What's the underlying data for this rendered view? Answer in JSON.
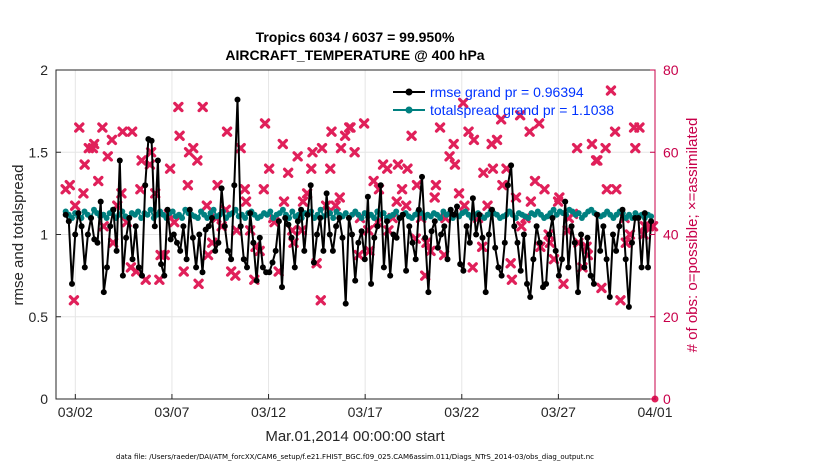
{
  "chart_data": {
    "type": "line",
    "title": "Tropics 6034 / 6037 = 99.950%",
    "subtitle": "AIRCRAFT_TEMPERATURE @ 400 hPa",
    "xlabel": "Mar.01,2014 00:00:00 start",
    "ylabel_left": "rmse and totalspread",
    "ylabel_right": "# of obs: o=possible; ×=assimilated",
    "ylim_left": [
      0,
      2
    ],
    "ylim_right": [
      0,
      80
    ],
    "xlim": [
      0,
      31
    ],
    "yticks_left": [
      0,
      0.5,
      1,
      1.5,
      2
    ],
    "yticks_left_labels": [
      "0",
      "0.5",
      "1",
      "1.5",
      "2"
    ],
    "yticks_right": [
      0,
      20,
      40,
      60,
      80
    ],
    "yticks_right_labels": [
      "0",
      "20",
      "40",
      "60",
      "80"
    ],
    "xticks": [
      1,
      6,
      11,
      16,
      21,
      26,
      31
    ],
    "xtick_labels": [
      "03/02",
      "03/07",
      "03/12",
      "03/17",
      "03/22",
      "03/27",
      "04/01"
    ],
    "grid": true,
    "legend_position": "top-right",
    "colors": {
      "rmse": "#000000",
      "spread": "#008080",
      "obs": "#e0205a",
      "right_axis": "#c8004a"
    },
    "series": [
      {
        "name": "rmse grand pr = 0.96394",
        "axis": "left",
        "values": [
          1.12,
          1.08,
          0.7,
          1.0,
          1.13,
          1.05,
          0.8,
          1.0,
          1.1,
          0.97,
          0.95,
          1.2,
          0.65,
          0.8,
          1.05,
          1.15,
          0.9,
          1.45,
          0.75,
          0.98,
          1.1,
          0.85,
          1.05,
          0.8,
          0.75,
          1.3,
          1.58,
          1.57,
          1.05,
          1.45,
          0.82,
          0.75,
          1.15,
          0.97,
          1.0,
          0.95,
          0.9,
          1.05,
          0.85,
          1.15,
          0.98,
          0.8,
          1.0,
          0.77,
          1.03,
          1.05,
          1.1,
          0.9,
          0.95,
          1.28,
          1.05,
          0.9,
          0.85,
          1.3,
          1.82,
          1.05,
          0.85,
          0.8,
          1.13,
          0.95,
          0.72,
          0.98,
          0.8,
          0.77,
          0.77,
          0.83,
          0.9,
          1.08,
          0.68,
          1.1,
          1.06,
          0.98,
          0.8,
          1.08,
          1.15,
          0.9,
          1.12,
          1.3,
          0.83,
          1.0,
          1.1,
          0.9,
          1.25,
          1.0,
          0.9,
          1.05,
          1.1,
          0.98,
          0.58,
          1.1,
          1.0,
          0.72,
          0.95,
          1.02,
          0.85,
          1.23,
          0.7,
          0.98,
          1.05,
          1.3,
          0.8,
          1.08,
          0.75,
          1.0,
          0.98,
          1.1,
          1.12,
          0.78,
          1.05,
          0.95,
          0.85,
          1.15,
          1.35,
          0.98,
          0.65,
          1.02,
          1.08,
          0.92,
          1.0,
          1.05,
          0.85,
          1.15,
          1.12,
          1.17,
          0.82,
          0.78,
          1.05,
          0.95,
          1.22,
          1.0,
          1.12,
          0.98,
          0.65,
          1.0,
          1.15,
          0.92,
          0.8,
          0.75,
          0.95,
          1.3,
          1.42,
          1.05,
          0.95,
          0.78,
          1.0,
          0.7,
          0.62,
          0.85,
          1.05,
          0.95,
          0.68,
          0.7,
          1.0,
          1.1,
          0.9,
          0.75,
          0.85,
          1.2,
          0.8,
          1.05,
          0.95,
          0.65,
          1.0,
          0.8,
          0.98,
          0.75,
          0.7,
          1.12,
          0.9,
          1.05,
          0.85,
          0.62,
          1.0,
          0.9,
          1.05,
          1.15,
          0.85,
          0.56,
          0.95,
          1.1,
          1.1,
          0.8,
          1.13,
          0.8,
          1.08
        ]
      },
      {
        "name": "totalspread grand pr = 1.1038",
        "axis": "left",
        "values": [
          1.14,
          1.12,
          1.1,
          1.13,
          1.11,
          1.1,
          1.14,
          1.12,
          1.1,
          1.15,
          1.13,
          1.11,
          1.12,
          1.1,
          1.13,
          1.15,
          1.1,
          1.12,
          1.14,
          1.11,
          1.1,
          1.13,
          1.12,
          1.14,
          1.1,
          1.13,
          1.12,
          1.15,
          1.1,
          1.12,
          1.14,
          1.12,
          1.1,
          1.13,
          1.14,
          1.11,
          1.12,
          1.1,
          1.15,
          1.13,
          1.12,
          1.11,
          1.1,
          1.14,
          1.12,
          1.1,
          1.13,
          1.15,
          1.11,
          1.12,
          1.14,
          1.1,
          1.12,
          1.13,
          1.15,
          1.11,
          1.12,
          1.1,
          1.13,
          1.14,
          1.12,
          1.1,
          1.11,
          1.13,
          1.12,
          1.14,
          1.1,
          1.12,
          1.13,
          1.15,
          1.12,
          1.1,
          1.14,
          1.11,
          1.12,
          1.1,
          1.13,
          1.12,
          1.14,
          1.1,
          1.12,
          1.15,
          1.11,
          1.12,
          1.13,
          1.1,
          1.14,
          1.12,
          1.11,
          1.13,
          1.1,
          1.12,
          1.14,
          1.12,
          1.1,
          1.13,
          1.11,
          1.12,
          1.1,
          1.14,
          1.12,
          1.13,
          1.1,
          1.11,
          1.12,
          1.14,
          1.1,
          1.12,
          1.13,
          1.11,
          1.1,
          1.12,
          1.14,
          1.13,
          1.1,
          1.12,
          1.11,
          1.13,
          1.12,
          1.1,
          1.14,
          1.12,
          1.13,
          1.1,
          1.12,
          1.11,
          1.13,
          1.14,
          1.12,
          1.1,
          1.12,
          1.13,
          1.11,
          1.1,
          1.12,
          1.14,
          1.13,
          1.12,
          1.1,
          1.11,
          1.12,
          1.14,
          1.12,
          1.1,
          1.13,
          1.12,
          1.11,
          1.1,
          1.13,
          1.12,
          1.14,
          1.12,
          1.1,
          1.11,
          1.13,
          1.15,
          1.12,
          1.14,
          1.13,
          1.12,
          1.15,
          1.14,
          1.12,
          1.13,
          1.1,
          1.12,
          1.14,
          1.15,
          1.13,
          1.12,
          1.11,
          1.12,
          1.14,
          1.12,
          1.1,
          1.12,
          1.14,
          1.13,
          1.1,
          1.12,
          1.1,
          1.13,
          1.11,
          1.12,
          1.1,
          1.12,
          1.11
        ]
      },
      {
        "name": "# obs assimilated",
        "axis": "right",
        "marker": "x",
        "values": [
          51,
          52,
          24,
          47,
          66,
          50,
          57,
          61,
          61,
          62,
          53,
          66,
          42,
          59,
          63,
          38,
          47,
          50,
          65,
          43,
          32,
          65,
          31,
          51,
          58,
          29,
          57,
          60,
          50,
          29,
          35,
          35,
          45,
          56,
          43,
          71,
          64,
          31,
          52,
          60,
          61,
          58,
          28,
          71,
          47,
          35,
          38,
          44,
          52,
          42,
          46,
          65,
          31,
          30,
          41,
          61,
          51,
          48,
          41,
          29,
          37,
          36,
          51,
          67,
          56,
          44,
          43,
          31,
          62,
          48,
          55,
          41,
          38,
          59,
          41,
          48,
          50,
          56,
          60,
          33,
          24,
          61,
          47,
          56,
          65,
          47,
          49,
          61,
          64,
          66,
          66,
          60,
          35,
          44,
          67,
          41,
          36,
          53,
          43,
          51,
          57,
          56,
          41,
          44,
          48,
          57,
          51,
          47,
          56,
          64,
          39,
          52,
          44,
          30,
          38,
          36,
          49,
          52,
          66,
          35,
          44,
          59,
          62,
          57,
          50,
          72,
          47,
          65,
          32,
          63,
          44,
          37,
          55,
          47,
          62,
          56,
          63,
          68,
          52,
          56,
          33,
          29,
          49,
          69,
          42,
          44,
          65,
          48,
          53,
          67,
          37,
          51,
          40,
          38,
          34,
          48,
          49,
          28,
          41,
          44,
          45,
          61,
          38,
          32,
          37,
          35,
          62,
          58,
          58,
          27,
          61,
          51,
          75,
          65,
          51,
          24,
          44,
          38,
          40,
          66,
          61,
          66,
          40,
          42,
          42,
          42
        ]
      },
      {
        "name": "# obs possible",
        "axis": "right",
        "marker": "o",
        "values": [
          0
        ]
      }
    ]
  },
  "footnote": "data file: /Users/raeder/DAI/ATM_forcXX/CAM6_setup/f.e21.FHIST_BGC.f09_025.CAM6assim.011/Diags_NTrS_2014-03/obs_diag_output.nc"
}
